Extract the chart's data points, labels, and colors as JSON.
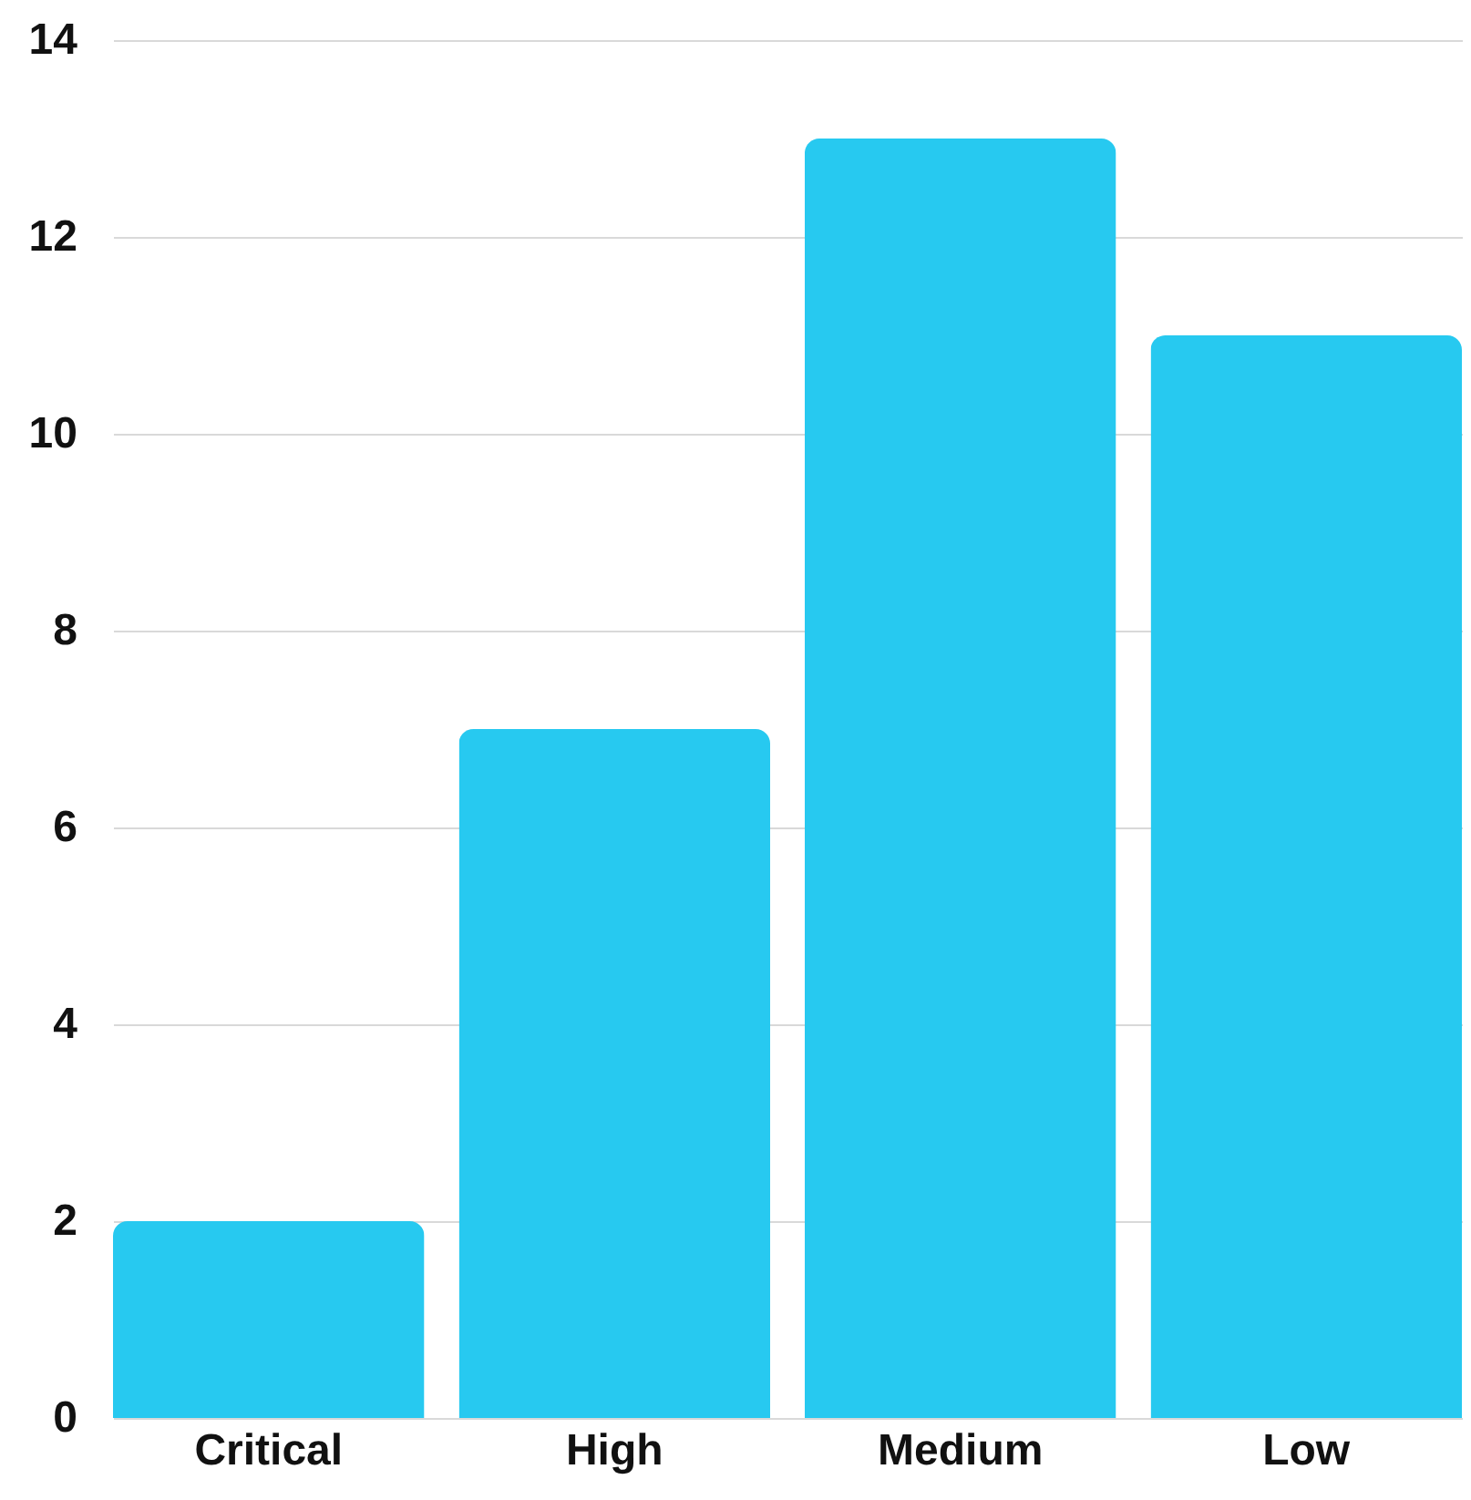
{
  "chart_data": {
    "type": "bar",
    "categories": [
      "Critical",
      "High",
      "Medium",
      "Low"
    ],
    "values": [
      2,
      7,
      13,
      11
    ],
    "color": "#27c9f0",
    "ylim": [
      0,
      14
    ],
    "yticks": [
      0,
      2,
      4,
      6,
      8,
      10,
      12,
      14
    ],
    "grid": "y"
  }
}
